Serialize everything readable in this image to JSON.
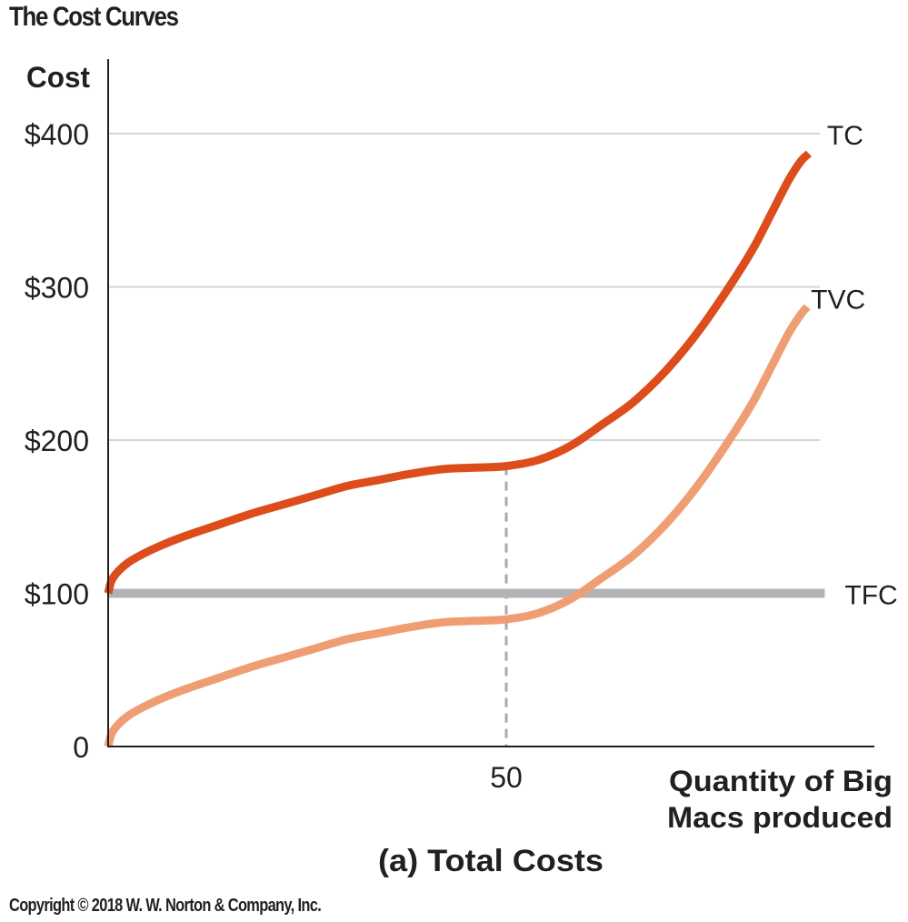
{
  "title": "The Cost Curves",
  "copyright": "Copyright © 2018 W. W. Norton & Company, Inc.",
  "chart_data": {
    "type": "line",
    "title": "The Cost Curves",
    "caption": "(a) Total Costs",
    "ylabel": "Cost",
    "xlabel_lines": [
      "Quantity of Big",
      "Macs produced"
    ],
    "ylim": [
      0,
      400
    ],
    "xlim": [
      0,
      100
    ],
    "y_ticks": [
      {
        "value": 0,
        "label": "0"
      },
      {
        "value": 100,
        "label": "$100"
      },
      {
        "value": 200,
        "label": "$200"
      },
      {
        "value": 300,
        "label": "$300"
      },
      {
        "value": 400,
        "label": "$400"
      }
    ],
    "x_ticks": [
      {
        "value": 50,
        "label": "50"
      }
    ],
    "grid": true,
    "reference_line": {
      "x": 50,
      "style": "dashed"
    },
    "series": [
      {
        "name": "TFC",
        "color": "#b1b3b6",
        "x": [
          0,
          90
        ],
        "y": [
          100,
          100
        ]
      },
      {
        "name": "TVC",
        "color": "#ef9e74",
        "x": [
          0,
          0.4,
          1.2,
          2.5,
          4.5,
          7,
          10,
          14,
          18,
          22,
          26,
          30,
          34,
          38,
          42,
          46,
          50,
          54,
          58,
          62,
          66,
          70,
          74,
          78,
          81,
          83.5,
          85.5,
          87,
          87.8
        ],
        "y": [
          0,
          8,
          14,
          20,
          26,
          32,
          38,
          45,
          52,
          58,
          64,
          70,
          74,
          78,
          81,
          82,
          83,
          87,
          96,
          110,
          125,
          145,
          170,
          200,
          225,
          250,
          270,
          282,
          287
        ]
      },
      {
        "name": "TC",
        "color": "#dc4d1b",
        "x": [
          0,
          0.4,
          1.2,
          2.5,
          4.5,
          7,
          10,
          14,
          18,
          22,
          26,
          30,
          34,
          38,
          42,
          46,
          50,
          54,
          58,
          62,
          66,
          70,
          74,
          78,
          81,
          83.5,
          85.5,
          87,
          88
        ],
        "y": [
          100,
          108,
          114,
          120,
          126,
          132,
          138,
          145,
          152,
          158,
          164,
          170,
          174,
          178,
          181,
          182,
          183,
          187,
          196,
          210,
          225,
          245,
          270,
          300,
          325,
          350,
          370,
          382,
          387
        ]
      }
    ]
  }
}
